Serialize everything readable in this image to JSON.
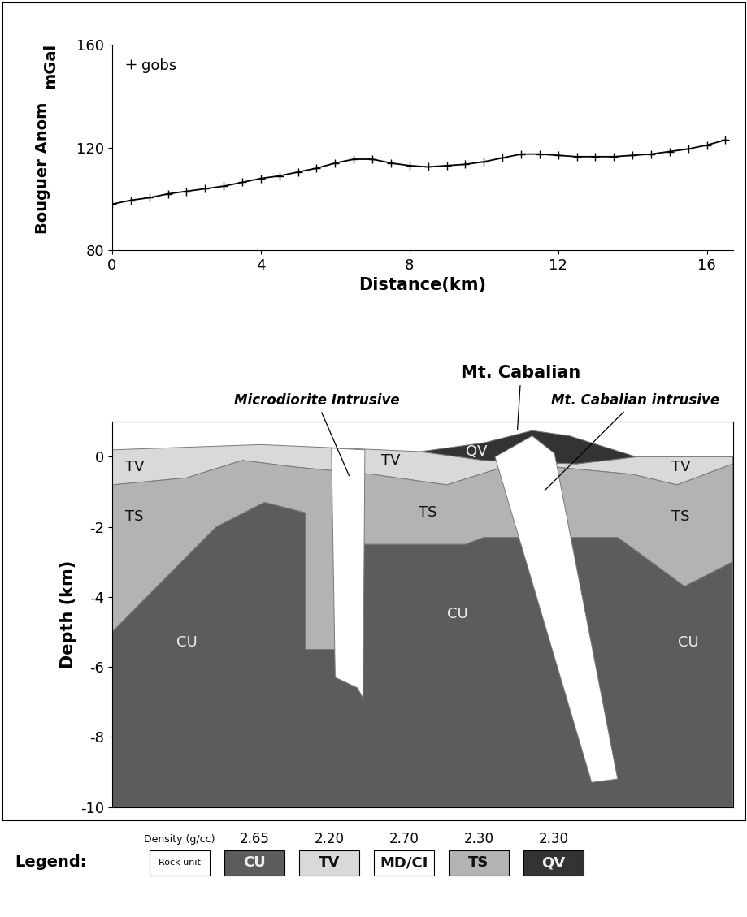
{
  "chart_data": [
    {
      "type": "line",
      "xlabel": "Distance(km)",
      "ylabel": "Bouguer Anom",
      "ylabel_unit": "mGal",
      "xlim": [
        0,
        16.7
      ],
      "xticks": [
        0,
        4,
        8,
        12,
        16
      ],
      "ylim": [
        80,
        160
      ],
      "yticks": [
        80,
        120,
        160
      ],
      "grid": false,
      "legend": "upper left",
      "x": [
        0,
        0.5,
        1,
        1.5,
        2,
        2.5,
        3,
        3.5,
        4,
        4.5,
        5,
        5.5,
        6,
        6.5,
        7,
        7.5,
        8,
        8.5,
        9,
        9.5,
        10,
        10.5,
        11,
        11.5,
        12,
        12.5,
        13,
        13.5,
        14,
        14.5,
        15,
        15.5,
        16,
        16.5
      ],
      "series": [
        {
          "name": "gobs",
          "color": "#000000",
          "marker": "plus",
          "line_style": "solid",
          "values": [
            98,
            99.5,
            100.5,
            102,
            103,
            104,
            105,
            106.5,
            108,
            109,
            110.5,
            112,
            114,
            115.5,
            115.5,
            114,
            113,
            112.5,
            113,
            113.5,
            114.5,
            116,
            117.5,
            117.5,
            117,
            116.5,
            116.5,
            116.5,
            117,
            117.5,
            118.5,
            119.5,
            121,
            123
          ]
        }
      ]
    },
    {
      "type": "cross_section",
      "ylabel": "Depth (km)",
      "xlim": [
        0,
        16.7
      ],
      "xticks": [],
      "ylim": [
        -10,
        1
      ],
      "yticks": [
        0,
        -2,
        -4,
        -6,
        -8,
        -10
      ],
      "grid": false,
      "tick_labels": "y",
      "annotations": [
        "Microdiorite Intrusive",
        "Mt. Cabalian",
        "Mt. Cabalian intrusive"
      ],
      "unit_labels": [
        "TV",
        "TS",
        "CU",
        "TV",
        "TS",
        "CU",
        "QV",
        "TV",
        "TS",
        "CU"
      ],
      "units": [
        {
          "name": "CU",
          "density": {
            "value": 2.65,
            "label": "2.65"
          },
          "color": "#5c5c5c",
          "bodies": [
            [
              [
                0,
                -5
              ],
              [
                2.8,
                -2
              ],
              [
                4.1,
                -1.3
              ],
              [
                5.2,
                -1.6
              ],
              [
                5.2,
                -5.5
              ],
              [
                6.0,
                -5.5
              ],
              [
                6.0,
                -2.5
              ],
              [
                9.5,
                -2.5
              ],
              [
                10,
                -2.3
              ],
              [
                13.6,
                -2.3
              ],
              [
                15.4,
                -3.7
              ],
              [
                16.7,
                -3
              ],
              [
                16.7,
                -10
              ],
              [
                0,
                -10
              ]
            ]
          ]
        },
        {
          "name": "TV",
          "density": {
            "value": 2.2,
            "label": "2.20"
          },
          "color": "#d9d9d9",
          "bodies": [
            [
              [
                0,
                0.2
              ],
              [
                4,
                0.35
              ],
              [
                8.3,
                0.15
              ],
              [
                10,
                -0.1
              ],
              [
                12.5,
                -0.2
              ],
              [
                14.1,
                0.0
              ],
              [
                16.7,
                0.0
              ],
              [
                16.7,
                -0.2
              ],
              [
                15.2,
                -0.8
              ],
              [
                14,
                -0.5
              ],
              [
                12,
                -0.3
              ],
              [
                10.5,
                -0.3
              ],
              [
                9,
                -0.8
              ],
              [
                7,
                -0.5
              ],
              [
                5,
                -0.3
              ],
              [
                3.5,
                -0.1
              ],
              [
                2,
                -0.6
              ],
              [
                0,
                -0.8
              ]
            ]
          ]
        },
        {
          "name": "MD/CI",
          "density": {
            "value": 2.7,
            "label": "2.70"
          },
          "color": "#ffffff",
          "bodies": [
            [
              [
                5.9,
                0.25
              ],
              [
                6.8,
                0.2
              ],
              [
                6.75,
                -6.9
              ],
              [
                6.6,
                -6.6
              ],
              [
                6.0,
                -6.3
              ]
            ],
            [
              [
                10.3,
                0.0
              ],
              [
                11.3,
                0.6
              ],
              [
                11.9,
                0.1
              ],
              [
                13.6,
                -9.2
              ],
              [
                12.9,
                -9.3
              ]
            ]
          ]
        },
        {
          "name": "TS",
          "density": {
            "value": 2.3,
            "label": "2.30"
          },
          "color": "#b3b3b3",
          "bodies": [
            [
              [
                0,
                -0.8
              ],
              [
                2,
                -0.6
              ],
              [
                3.5,
                -0.1
              ],
              [
                5,
                -0.3
              ],
              [
                7,
                -0.5
              ],
              [
                9,
                -0.8
              ],
              [
                10.5,
                -0.3
              ],
              [
                12,
                -0.3
              ],
              [
                14,
                -0.5
              ],
              [
                15.2,
                -0.8
              ],
              [
                16.7,
                -0.2
              ],
              [
                16.7,
                -3
              ],
              [
                15.4,
                -3.7
              ],
              [
                13.6,
                -2.3
              ],
              [
                10,
                -2.3
              ],
              [
                9.5,
                -2.5
              ],
              [
                6.0,
                -2.5
              ],
              [
                6.0,
                -5.5
              ],
              [
                5.2,
                -5.5
              ],
              [
                5.2,
                -1.6
              ],
              [
                4.1,
                -1.3
              ],
              [
                2.8,
                -2
              ],
              [
                0,
                -5
              ]
            ]
          ]
        },
        {
          "name": "QV",
          "density": {
            "value": 2.3,
            "label": "2.30"
          },
          "color": "#333333",
          "bodies": [
            [
              [
                8.3,
                0.15
              ],
              [
                10,
                0.4
              ],
              [
                11.3,
                0.75
              ],
              [
                12.3,
                0.6
              ],
              [
                14.1,
                0.0
              ],
              [
                12.5,
                -0.2
              ],
              [
                10,
                -0.1
              ]
            ]
          ]
        }
      ]
    }
  ],
  "key": {
    "title": "Legend:",
    "header": "Density (g/cc)",
    "box_label": "Rock unit"
  }
}
